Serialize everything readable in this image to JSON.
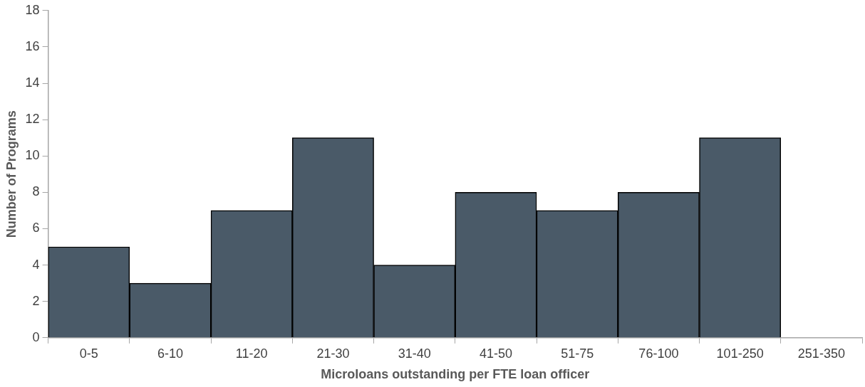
{
  "chart_data": {
    "type": "bar",
    "xlabel": "Microloans outstanding per FTE loan officer",
    "ylabel": "Number of Programs",
    "categories": [
      "0-5",
      "6-10",
      "11-20",
      "21-30",
      "31-40",
      "41-50",
      "51-75",
      "76-100",
      "101-250",
      "251-350"
    ],
    "values": [
      5,
      3,
      7,
      11,
      4,
      8,
      7,
      8,
      11,
      0
    ],
    "color": "#4a5a68",
    "ylim": [
      0,
      18
    ],
    "yticks": [
      0,
      2,
      4,
      6,
      8,
      10,
      12,
      14,
      16,
      18
    ],
    "grid": false,
    "legend": false
  }
}
